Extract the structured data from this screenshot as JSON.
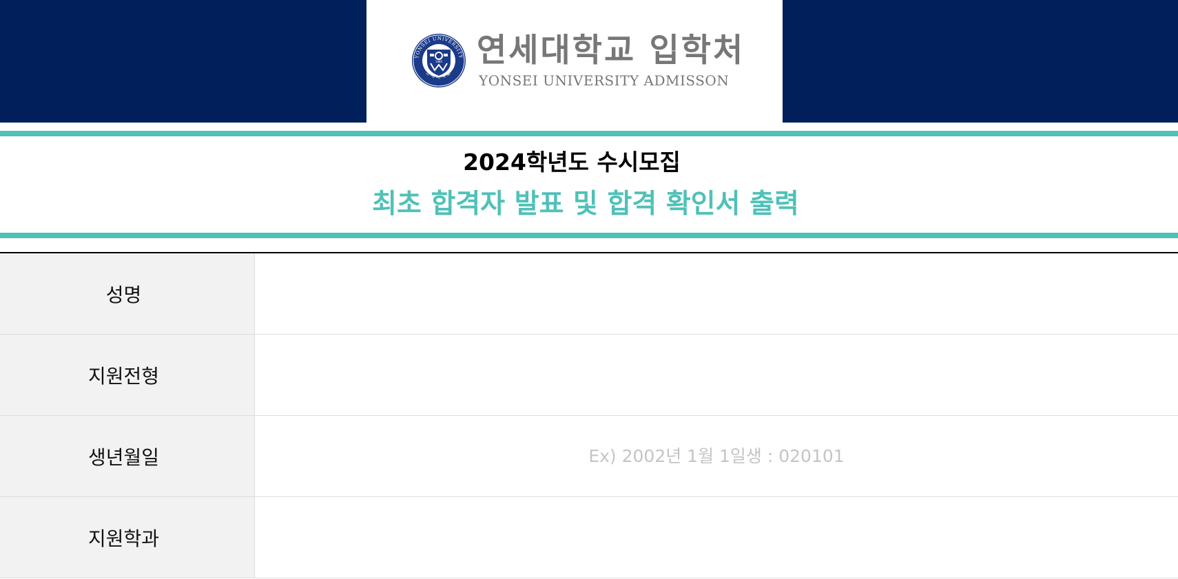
{
  "header": {
    "logo_korean": "연세대학교 입학처",
    "logo_english": "YONSEI UNIVERSITY ADMISSON",
    "seal_text_top": "YONSEI UNIVERSITY",
    "seal_text_bottom": "연세대학교",
    "seal_year": "1885"
  },
  "titles": {
    "year_title": "2024학년도 수시모집",
    "main_title": "최초 합격자 발표 및 합격 확인서 출력"
  },
  "form": {
    "rows": [
      {
        "label": "성명",
        "value": "",
        "placeholder": ""
      },
      {
        "label": "지원전형",
        "value": "",
        "placeholder": ""
      },
      {
        "label": "생년월일",
        "value": "",
        "placeholder": "Ex) 2002년 1월 1일생 : 020101"
      },
      {
        "label": "지원학과",
        "value": "",
        "placeholder": ""
      }
    ]
  },
  "colors": {
    "navy": "#001f5b",
    "teal": "#4fc1b8",
    "logo_gray": "#777777",
    "label_bg": "#f2f2f2"
  },
  "icons": {
    "seal": "yonsei-seal-icon"
  }
}
